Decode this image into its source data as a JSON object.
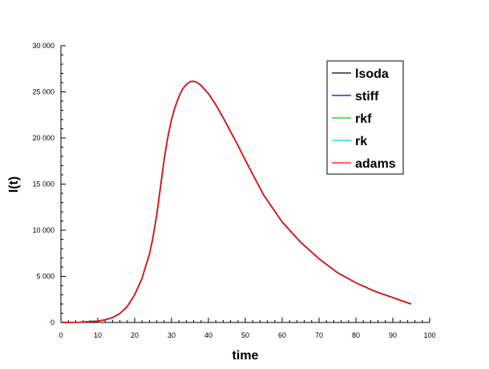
{
  "chart_data": {
    "type": "line",
    "title": "",
    "xlabel": "time",
    "ylabel": "I(t)",
    "xlim": [
      0,
      100
    ],
    "ylim": [
      0,
      30000
    ],
    "x_ticks": [
      0,
      10,
      20,
      30,
      40,
      50,
      60,
      70,
      80,
      90,
      100
    ],
    "x_tick_labels": [
      "0",
      "10",
      "20",
      "30",
      "40",
      "50",
      "60",
      "70",
      "80",
      "90",
      "100"
    ],
    "y_ticks": [
      0,
      5000,
      10000,
      15000,
      20000,
      25000,
      30000
    ],
    "y_tick_labels": [
      "0",
      "5 000",
      "10 000",
      "15 000",
      "20 000",
      "25 000",
      "30 000"
    ],
    "grid": false,
    "legend_position": "top-right",
    "x": [
      0,
      5,
      10,
      12,
      14,
      16,
      18,
      20,
      22,
      24,
      25,
      26,
      27,
      28,
      29,
      30,
      31,
      32,
      33,
      34,
      35,
      36,
      37,
      38,
      40,
      42,
      44,
      46,
      48,
      50,
      55,
      60,
      65,
      70,
      75,
      80,
      85,
      90,
      95
    ],
    "series": [
      {
        "name": "lsoda",
        "color": "#000000",
        "values": [
          0,
          30,
          150,
          290,
          530,
          970,
          1740,
          3000,
          4800,
          7400,
          9300,
          11700,
          14700,
          17700,
          20100,
          22000,
          23400,
          24500,
          25300,
          25800,
          26100,
          26150,
          26000,
          25700,
          24800,
          23600,
          22200,
          20700,
          19200,
          17600,
          13800,
          10900,
          8700,
          6900,
          5400,
          4300,
          3400,
          2700,
          2000
        ]
      },
      {
        "name": "stiff",
        "color": "#0000cc",
        "values": [
          0,
          30,
          150,
          290,
          530,
          970,
          1740,
          3000,
          4800,
          7400,
          9300,
          11700,
          14700,
          17700,
          20100,
          22000,
          23400,
          24500,
          25300,
          25800,
          26100,
          26150,
          26000,
          25700,
          24800,
          23600,
          22200,
          20700,
          19200,
          17600,
          13800,
          10900,
          8700,
          6900,
          5400,
          4300,
          3400,
          2700,
          2000
        ]
      },
      {
        "name": "rkf",
        "color": "#00cc00",
        "values": [
          0,
          30,
          150,
          290,
          530,
          970,
          1740,
          3000,
          4800,
          7400,
          9300,
          11700,
          14700,
          17700,
          20100,
          22000,
          23400,
          24500,
          25300,
          25800,
          26100,
          26150,
          26000,
          25700,
          24800,
          23600,
          22200,
          20700,
          19200,
          17600,
          13800,
          10900,
          8700,
          6900,
          5400,
          4300,
          3400,
          2700,
          2000
        ]
      },
      {
        "name": "rk",
        "color": "#00ccff",
        "values": [
          0,
          30,
          150,
          290,
          530,
          970,
          1740,
          3000,
          4800,
          7400,
          9300,
          11700,
          14700,
          17700,
          20100,
          22000,
          23400,
          24500,
          25300,
          25800,
          26100,
          26150,
          26000,
          25700,
          24800,
          23600,
          22200,
          20700,
          19200,
          17600,
          13800,
          10900,
          8700,
          6900,
          5400,
          4300,
          3400,
          2700,
          2000
        ]
      },
      {
        "name": "adams",
        "color": "#ff0000",
        "values": [
          0,
          30,
          150,
          290,
          530,
          970,
          1740,
          3000,
          4800,
          7400,
          9300,
          11700,
          14700,
          17700,
          20100,
          22000,
          23400,
          24500,
          25300,
          25800,
          26100,
          26150,
          26000,
          25700,
          24800,
          23600,
          22200,
          20700,
          19200,
          17600,
          13800,
          10900,
          8700,
          6900,
          5400,
          4300,
          3400,
          2700,
          2000
        ]
      }
    ]
  }
}
